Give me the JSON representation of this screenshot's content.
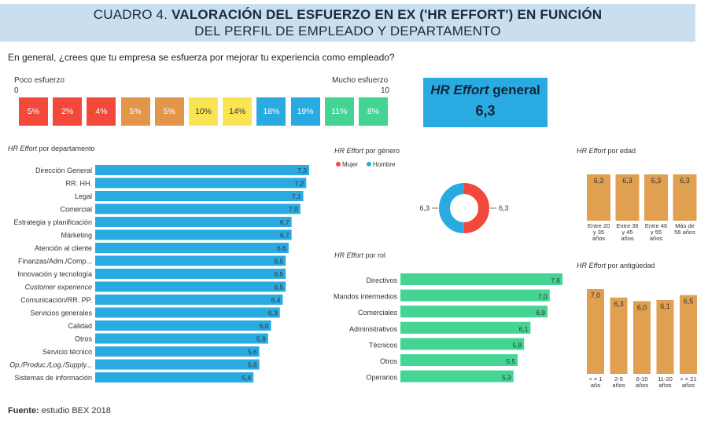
{
  "title": {
    "prefix": "CUADRO 4.",
    "line1": "VALORACIÓN DEL ESFUERZO EN EX ('HR EFFORT') EN FUNCIÓN",
    "line2": "DEL PERFIL DE EMPLEADO Y DEPARTAMENTO"
  },
  "question": "En general, ¿crees que tu empresa se esfuerza por mejorar tu experiencia como empleado?",
  "scale": {
    "low_label": "Poco esfuerzo",
    "high_label": "Mucho esfuerzo",
    "min": "0",
    "max": "10",
    "boxes": [
      {
        "label": "5%",
        "color": "#f2493b"
      },
      {
        "label": "2%",
        "color": "#f2493b"
      },
      {
        "label": "4%",
        "color": "#f2493b"
      },
      {
        "label": "5%",
        "color": "#e2964a"
      },
      {
        "label": "5%",
        "color": "#e2964a"
      },
      {
        "label": "10%",
        "color": "#fbe453"
      },
      {
        "label": "14%",
        "color": "#fbe453"
      },
      {
        "label": "18%",
        "color": "#29abe2"
      },
      {
        "label": "19%",
        "color": "#29abe2"
      },
      {
        "label": "11%",
        "color": "#44d494"
      },
      {
        "label": "8%",
        "color": "#44d494"
      }
    ]
  },
  "general": {
    "title_italic": "HR Effort",
    "title_rest": " general",
    "value": "6,3"
  },
  "colors": {
    "blue": "#29abe2",
    "green": "#44d494",
    "orange": "#e0a050",
    "red": "#f2493b"
  },
  "source": {
    "label": "Fuente:",
    "text": " estudio BEX 2018"
  },
  "chart_data": [
    {
      "type": "bar",
      "orientation": "horizontal",
      "title_italic": "HR Effort",
      "title_rest": " por departamento",
      "categories": [
        "Dirección General",
        "RR. HH.",
        "Legal",
        "Comercial",
        "Estrategia y planificación",
        "Márketing",
        "Atención al cliente",
        "Finanzas/Adm./Comp...",
        "Innovación y tecnología",
        "Customer experience",
        "Comunicación/RR. PP.",
        "Servicios generales",
        "Calidad",
        "Otros",
        "Servicio técnico",
        "Op./Produc./Log./Supply...",
        "Sistemas de información"
      ],
      "italic_categories": [
        "Customer experience",
        "Op./Produc./Log./Supply..."
      ],
      "values": [
        7.3,
        7.2,
        7.1,
        7.0,
        6.7,
        6.7,
        6.6,
        6.5,
        6.5,
        6.5,
        6.4,
        6.3,
        6.0,
        5.9,
        5.6,
        5.6,
        5.4
      ],
      "labels": [
        "7,3",
        "7,2",
        "7,1",
        "7,0",
        "6,7",
        "6,7",
        "6,6",
        "6,5",
        "6,5",
        "6,5",
        "6,4",
        "6,3",
        "6,0",
        "5,9",
        "5,6",
        "5,6",
        "5,4"
      ],
      "xlim": [
        0,
        7.3
      ],
      "color": "#29abe2"
    },
    {
      "type": "pie",
      "title_italic": "HR Effort",
      "title_rest": " por género",
      "series": [
        {
          "name": "Mujer",
          "value": 6.3,
          "label": "6,3",
          "color": "#f2493b"
        },
        {
          "name": "Hombre",
          "value": 6.3,
          "label": "6,3",
          "color": "#29abe2"
        }
      ]
    },
    {
      "type": "bar",
      "orientation": "horizontal",
      "title_italic": "HR Effort",
      "title_rest": " por rol",
      "categories": [
        "Directivos",
        "Mandos intermedios",
        "Comerciales",
        "Administrativos",
        "Técnicos",
        "Otros",
        "Operarios"
      ],
      "values": [
        7.6,
        7.0,
        6.9,
        6.1,
        5.8,
        5.5,
        5.3
      ],
      "labels": [
        "7,6",
        "7,0",
        "6,9",
        "6,1",
        "5,8",
        "5,5",
        "5,3"
      ],
      "xlim": [
        0,
        7.6
      ],
      "color": "#44d494"
    },
    {
      "type": "bar",
      "orientation": "vertical",
      "title_italic": "HR Effort",
      "title_rest": " por edad",
      "categories": [
        [
          "Entre 20",
          "y 35",
          "años"
        ],
        [
          "Entre 36",
          "y 45",
          "años"
        ],
        [
          "Entre 46",
          "y 55",
          "años"
        ],
        [
          "Más de",
          "56 años"
        ]
      ],
      "values": [
        6.3,
        6.3,
        6.3,
        6.3
      ],
      "labels": [
        "6,3",
        "6,3",
        "6,3",
        "6,3"
      ],
      "color": "#e0a050"
    },
    {
      "type": "bar",
      "orientation": "vertical",
      "title_italic": "HR Effort",
      "title_rest": " por antigüedad",
      "categories": [
        [
          "< = 1",
          "año"
        ],
        [
          "2-5",
          "años"
        ],
        [
          "6-10",
          "años"
        ],
        [
          "11-20",
          "años"
        ],
        [
          "> = 21",
          "años"
        ]
      ],
      "values": [
        7.0,
        6.3,
        6.0,
        6.1,
        6.5
      ],
      "labels": [
        "7,0",
        "6,3",
        "6,0",
        "6,1",
        "6,5"
      ],
      "ylim": [
        0,
        7.0
      ],
      "color": "#e0a050"
    }
  ]
}
